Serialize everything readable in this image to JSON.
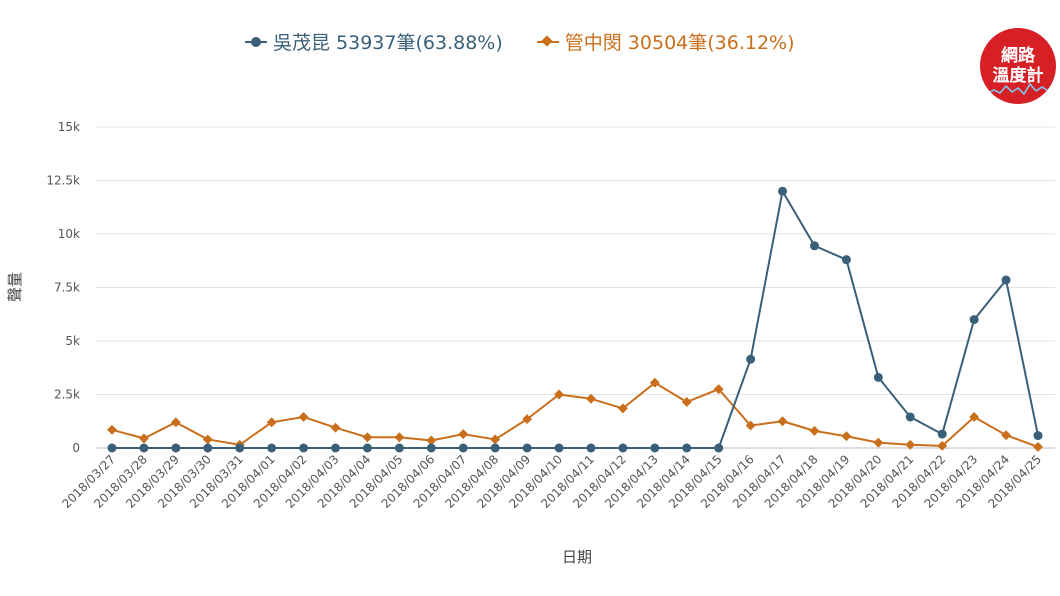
{
  "legend": [
    {
      "label": "吳茂昆 53937筆(63.88%)",
      "color": "#3a6079"
    },
    {
      "label": "管中閔 30504筆(36.12%)",
      "color": "#c96f1c"
    }
  ],
  "logo": {
    "line1": "網路",
    "line2": "溫度計"
  },
  "chart_data": {
    "type": "line",
    "xlabel": "日期",
    "ylabel": "聲量",
    "ylim": [
      0,
      15000
    ],
    "yticks": [
      0,
      2500,
      5000,
      7500,
      10000,
      12500,
      15000
    ],
    "yticklabels": [
      "0",
      "2.5k",
      "5k",
      "7.5k",
      "10k",
      "12.5k",
      "15k"
    ],
    "grid": true,
    "legend_position": "top",
    "categories": [
      "2018/03/27",
      "2018/03/28",
      "2018/03/29",
      "2018/03/30",
      "2018/03/31",
      "2018/04/01",
      "2018/04/02",
      "2018/04/03",
      "2018/04/04",
      "2018/04/05",
      "2018/04/06",
      "2018/04/07",
      "2018/04/08",
      "2018/04/09",
      "2018/04/10",
      "2018/04/11",
      "2018/04/12",
      "2018/04/13",
      "2018/04/14",
      "2018/04/15",
      "2018/04/16",
      "2018/04/17",
      "2018/04/18",
      "2018/04/19",
      "2018/04/20",
      "2018/04/21",
      "2018/04/22",
      "2018/04/23",
      "2018/04/24",
      "2018/04/25"
    ],
    "series": [
      {
        "name": "吳茂昆 53937筆(63.88%)",
        "color": "#3a6079",
        "marker": "circle",
        "values": [
          0,
          0,
          0,
          0,
          0,
          0,
          0,
          0,
          0,
          0,
          0,
          0,
          0,
          0,
          0,
          0,
          0,
          0,
          0,
          0,
          4150,
          12000,
          9450,
          8800,
          3300,
          1450,
          650,
          6000,
          7850,
          580
        ]
      },
      {
        "name": "管中閔 30504筆(36.12%)",
        "color": "#c96f1c",
        "marker": "diamond",
        "values": [
          850,
          450,
          1200,
          400,
          150,
          1200,
          1450,
          950,
          500,
          500,
          350,
          650,
          400,
          1350,
          2500,
          2300,
          1850,
          3050,
          2150,
          2750,
          1050,
          1250,
          800,
          550,
          250,
          150,
          100,
          1450,
          600,
          50
        ]
      }
    ]
  }
}
